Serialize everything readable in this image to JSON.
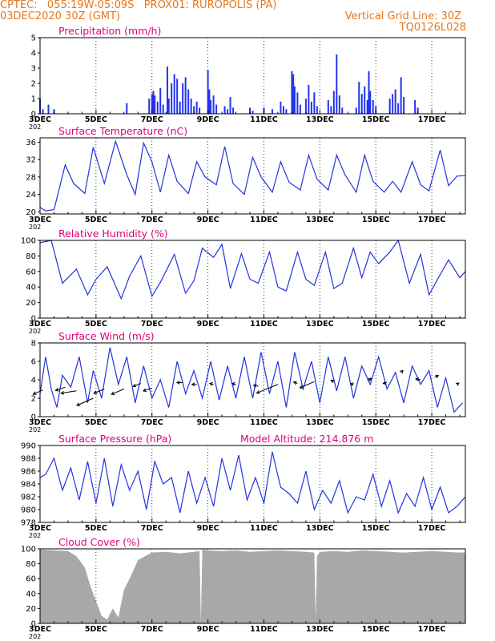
{
  "header": {
    "left_line1": "CPTEC:   055:19W-05:09S   PROX01: RUROPOLIS (PA)",
    "left_line2": "03DEC2020 30Z (GMT)",
    "right_line2": "Vertical Grid Line: 30Z",
    "right_line3": "TQ0126L028"
  },
  "colors": {
    "header": "#e8761a",
    "title": "#e0007a",
    "line": "#2233dd",
    "bar": "#2233ee",
    "cloud": "#a8a8a8",
    "arrow": "#000000"
  },
  "x_axis": {
    "tick_labels": [
      "3DEC",
      "5DEC",
      "7DEC",
      "9DEC",
      "11DEC",
      "13DEC",
      "15DEC",
      "17DEC"
    ],
    "tick_days": [
      3,
      5,
      7,
      9,
      11,
      13,
      15,
      17
    ],
    "range_days": [
      3,
      18.2
    ],
    "year_fragment": "202"
  },
  "chart_data": [
    {
      "type": "bar",
      "title": "Precipitation (mm/h)",
      "ylim": [
        0,
        5
      ],
      "yticks": [
        0,
        1,
        2,
        3,
        4,
        5
      ],
      "x": [
        3.0,
        3.1,
        3.3,
        3.5,
        6.1,
        6.9,
        7.0,
        7.05,
        7.1,
        7.2,
        7.3,
        7.4,
        7.55,
        7.6,
        7.7,
        7.8,
        7.9,
        8.0,
        8.1,
        8.2,
        8.3,
        8.4,
        8.5,
        8.6,
        8.7,
        9.0,
        9.05,
        9.1,
        9.2,
        9.3,
        9.6,
        9.7,
        9.8,
        9.9,
        10.5,
        10.6,
        11.0,
        11.3,
        11.6,
        11.7,
        11.8,
        12.0,
        12.05,
        12.1,
        12.2,
        12.3,
        12.5,
        12.6,
        12.7,
        12.8,
        12.9,
        13.3,
        13.4,
        13.5,
        13.6,
        13.7,
        13.8,
        14.3,
        14.4,
        14.5,
        14.6,
        14.7,
        14.75,
        14.8,
        14.9,
        15.0,
        15.5,
        15.6,
        15.7,
        15.8,
        15.9,
        16.0,
        16.4,
        16.5
      ],
      "values": [
        1.0,
        0.3,
        0.6,
        0.3,
        0.7,
        1.0,
        1.3,
        1.5,
        1.2,
        0.8,
        1.7,
        0.6,
        3.1,
        1.0,
        2.0,
        2.6,
        2.3,
        0.8,
        2.0,
        2.4,
        1.6,
        1.0,
        0.5,
        0.8,
        0.4,
        2.9,
        1.6,
        0.9,
        1.2,
        0.6,
        0.5,
        0.3,
        1.1,
        0.4,
        0.4,
        0.2,
        0.4,
        0.3,
        0.8,
        0.5,
        0.3,
        2.8,
        2.6,
        1.8,
        1.4,
        0.6,
        1.0,
        1.9,
        0.8,
        1.4,
        0.5,
        0.9,
        0.5,
        1.5,
        3.9,
        1.2,
        0.4,
        0.4,
        2.1,
        1.3,
        1.8,
        0.9,
        2.8,
        1.5,
        0.9,
        0.5,
        1.0,
        1.3,
        1.6,
        0.7,
        2.4,
        1.1,
        0.9,
        0.4
      ]
    },
    {
      "type": "line",
      "title": "Surface Temperature (nC)",
      "ylim": [
        19.5,
        37
      ],
      "yticks": [
        20,
        24,
        28,
        32,
        36
      ],
      "x": [
        3.0,
        3.2,
        3.5,
        3.9,
        4.2,
        4.6,
        4.9,
        5.3,
        5.7,
        6.1,
        6.4,
        6.7,
        7.0,
        7.3,
        7.6,
        7.9,
        8.3,
        8.6,
        8.9,
        9.3,
        9.6,
        9.9,
        10.3,
        10.6,
        10.9,
        11.3,
        11.6,
        11.9,
        12.3,
        12.6,
        12.9,
        13.3,
        13.6,
        13.9,
        14.3,
        14.6,
        14.9,
        15.3,
        15.6,
        15.9,
        16.3,
        16.6,
        16.9,
        17.3,
        17.6,
        17.9,
        18.2
      ],
      "values": [
        21.0,
        20.2,
        20.5,
        30.8,
        26.5,
        24.2,
        34.8,
        26.5,
        36.2,
        28.5,
        24.0,
        35.8,
        31.5,
        24.5,
        33.0,
        27.0,
        24.2,
        31.5,
        28.0,
        26.2,
        35.0,
        26.5,
        24.0,
        32.5,
        28.0,
        24.5,
        31.5,
        26.8,
        25.0,
        33.0,
        27.5,
        25.0,
        33.0,
        28.5,
        24.5,
        33.0,
        27.0,
        24.5,
        27.0,
        24.5,
        31.5,
        26.2,
        24.8,
        34.2,
        26.0,
        28.2,
        28.3
      ]
    },
    {
      "type": "line",
      "title": "Relative Humidity (%)",
      "ylim": [
        0,
        100
      ],
      "yticks": [
        0,
        20,
        40,
        60,
        80,
        100
      ],
      "x": [
        3.0,
        3.4,
        3.8,
        4.3,
        4.7,
        5.0,
        5.4,
        5.9,
        6.2,
        6.6,
        7.0,
        7.3,
        7.8,
        8.2,
        8.5,
        8.8,
        9.2,
        9.5,
        9.8,
        10.2,
        10.5,
        10.8,
        11.2,
        11.5,
        11.8,
        12.2,
        12.5,
        12.8,
        13.2,
        13.5,
        13.8,
        14.2,
        14.5,
        14.8,
        15.1,
        15.5,
        15.8,
        16.2,
        16.6,
        16.9,
        17.3,
        17.6,
        18.0,
        18.2
      ],
      "values": [
        97,
        100,
        45,
        63,
        30,
        50,
        66,
        25,
        54,
        80,
        28,
        46,
        82,
        32,
        48,
        90,
        78,
        95,
        38,
        83,
        50,
        45,
        85,
        40,
        35,
        85,
        50,
        42,
        85,
        38,
        45,
        90,
        52,
        85,
        70,
        85,
        100,
        45,
        82,
        30,
        56,
        75,
        52,
        60
      ]
    },
    {
      "type": "line",
      "title": "Surface Wind (m/s)",
      "ylim": [
        0,
        8
      ],
      "yticks": [
        0,
        2,
        4,
        6,
        8
      ],
      "x": [
        3.0,
        3.2,
        3.4,
        3.6,
        3.8,
        4.1,
        4.4,
        4.7,
        4.9,
        5.2,
        5.5,
        5.8,
        6.1,
        6.4,
        6.7,
        7.0,
        7.3,
        7.6,
        7.9,
        8.2,
        8.5,
        8.8,
        9.1,
        9.4,
        9.7,
        10.0,
        10.3,
        10.6,
        10.9,
        11.2,
        11.5,
        11.8,
        12.1,
        12.4,
        12.7,
        13.0,
        13.3,
        13.6,
        13.9,
        14.2,
        14.5,
        14.8,
        15.1,
        15.4,
        15.7,
        16.0,
        16.3,
        16.6,
        16.9,
        17.2,
        17.5,
        17.8,
        18.1
      ],
      "values": [
        2.5,
        6.5,
        3.0,
        1.0,
        4.5,
        3.2,
        6.5,
        1.5,
        5.0,
        2.0,
        7.5,
        3.5,
        6.5,
        1.5,
        5.5,
        2.0,
        4.0,
        1.0,
        6.0,
        2.5,
        5.0,
        2.0,
        6.0,
        1.8,
        5.5,
        2.0,
        6.5,
        2.0,
        7.0,
        2.5,
        6.0,
        1.0,
        7.0,
        3.0,
        6.0,
        1.5,
        6.5,
        2.8,
        6.5,
        2.0,
        5.5,
        3.5,
        6.5,
        3.0,
        4.8,
        1.5,
        5.5,
        3.5,
        5.0,
        1.0,
        4.2,
        0.5,
        1.5
      ],
      "arrows": [
        {
          "x": 3.1,
          "y": 2.9,
          "u": -1.0,
          "v": -0.9
        },
        {
          "x": 3.9,
          "y": 3.2,
          "u": -1.0,
          "v": -0.7
        },
        {
          "x": 4.3,
          "y": 2.8,
          "u": -1.6,
          "v": -0.5
        },
        {
          "x": 4.9,
          "y": 2.0,
          "u": -1.7,
          "v": -1.5
        },
        {
          "x": 5.3,
          "y": 3.0,
          "u": -1.1,
          "v": -0.9
        },
        {
          "x": 6.0,
          "y": 3.0,
          "u": -1.3,
          "v": -1.1
        },
        {
          "x": 6.6,
          "y": 3.6,
          "u": -0.8,
          "v": -0.6
        },
        {
          "x": 7.0,
          "y": 3.1,
          "u": -0.9,
          "v": -0.6
        },
        {
          "x": 8.1,
          "y": 3.7,
          "u": -0.6,
          "v": 0.0
        },
        {
          "x": 8.6,
          "y": 3.5,
          "u": -0.5,
          "v": 0.0
        },
        {
          "x": 9.2,
          "y": 3.5,
          "u": -0.4,
          "v": 0.2
        },
        {
          "x": 10.0,
          "y": 3.5,
          "u": -0.4,
          "v": 0.2
        },
        {
          "x": 10.8,
          "y": 3.3,
          "u": -0.5,
          "v": 0.2
        },
        {
          "x": 11.5,
          "y": 3.5,
          "u": -2.2,
          "v": -1.8
        },
        {
          "x": 12.2,
          "y": 3.6,
          "u": -0.4,
          "v": 0.3
        },
        {
          "x": 12.8,
          "y": 3.8,
          "u": -1.5,
          "v": -1.3
        },
        {
          "x": 13.5,
          "y": 3.8,
          "u": -0.3,
          "v": 0.3
        },
        {
          "x": 14.2,
          "y": 3.5,
          "u": -0.3,
          "v": 0.2
        },
        {
          "x": 14.7,
          "y": 3.9,
          "u": 0.4,
          "v": 0.5
        },
        {
          "x": 15.4,
          "y": 3.7,
          "u": -0.4,
          "v": -0.2
        },
        {
          "x": 15.9,
          "y": 4.8,
          "u": 0.2,
          "v": 0.4
        },
        {
          "x": 16.6,
          "y": 4.0,
          "u": -0.5,
          "v": 0.2
        },
        {
          "x": 17.1,
          "y": 4.3,
          "u": 0.4,
          "v": 0.3
        },
        {
          "x": 17.9,
          "y": 3.5,
          "u": 0.2,
          "v": 0.3
        }
      ]
    },
    {
      "type": "line",
      "title": "Surface Pressure (hPa)",
      "annotation": "Model Altitude: 214.876 m",
      "ylim": [
        978,
        990
      ],
      "yticks": [
        978,
        980,
        982,
        984,
        986,
        988,
        990
      ],
      "x": [
        3.0,
        3.2,
        3.5,
        3.8,
        4.1,
        4.4,
        4.7,
        5.0,
        5.3,
        5.6,
        5.9,
        6.2,
        6.5,
        6.8,
        7.1,
        7.4,
        7.7,
        8.0,
        8.3,
        8.6,
        8.9,
        9.2,
        9.5,
        9.8,
        10.1,
        10.4,
        10.7,
        11.0,
        11.3,
        11.6,
        11.9,
        12.2,
        12.5,
        12.8,
        13.1,
        13.4,
        13.7,
        14.0,
        14.3,
        14.6,
        14.9,
        15.2,
        15.5,
        15.8,
        16.1,
        16.4,
        16.7,
        17.0,
        17.3,
        17.6,
        17.9,
        18.2
      ],
      "values": [
        985.0,
        985.5,
        988.0,
        983.0,
        986.5,
        981.5,
        987.5,
        981.0,
        988.0,
        980.5,
        987.0,
        983.0,
        986.0,
        980.0,
        987.5,
        984.0,
        985.0,
        979.5,
        986.0,
        981.0,
        985.0,
        980.5,
        988.0,
        983.0,
        988.5,
        981.5,
        985.0,
        981.0,
        989.0,
        983.5,
        982.5,
        981.0,
        986.0,
        980.0,
        983.0,
        981.0,
        984.5,
        979.5,
        982.0,
        981.5,
        985.5,
        980.5,
        984.5,
        979.5,
        982.5,
        980.5,
        985.0,
        980.0,
        983.5,
        979.5,
        980.5,
        982.0
      ]
    },
    {
      "type": "area",
      "title": "Cloud Cover (%)",
      "ylim": [
        0,
        100
      ],
      "yticks": [
        0,
        20,
        40,
        60,
        80,
        100
      ],
      "x": [
        3.0,
        3.5,
        4.0,
        4.3,
        4.6,
        4.8,
        5.0,
        5.2,
        5.4,
        5.6,
        5.8,
        6.0,
        6.2,
        6.5,
        7.0,
        7.5,
        8.0,
        8.5,
        8.7,
        8.75,
        8.8,
        9.0,
        9.5,
        10.0,
        10.5,
        11.0,
        11.5,
        12.0,
        12.5,
        12.8,
        12.85,
        12.9,
        13.0,
        13.5,
        14.0,
        14.5,
        15.0,
        15.5,
        16.0,
        16.5,
        17.0,
        17.5,
        18.0,
        18.2
      ],
      "values": [
        99,
        98,
        97,
        90,
        75,
        50,
        30,
        10,
        5,
        20,
        8,
        45,
        60,
        85,
        95,
        96,
        94,
        96,
        97,
        0,
        99,
        98,
        97,
        98,
        96,
        97,
        98,
        97,
        96,
        95,
        5,
        90,
        96,
        97,
        96,
        98,
        97,
        96,
        95,
        96,
        97,
        96,
        95,
        95
      ]
    }
  ]
}
